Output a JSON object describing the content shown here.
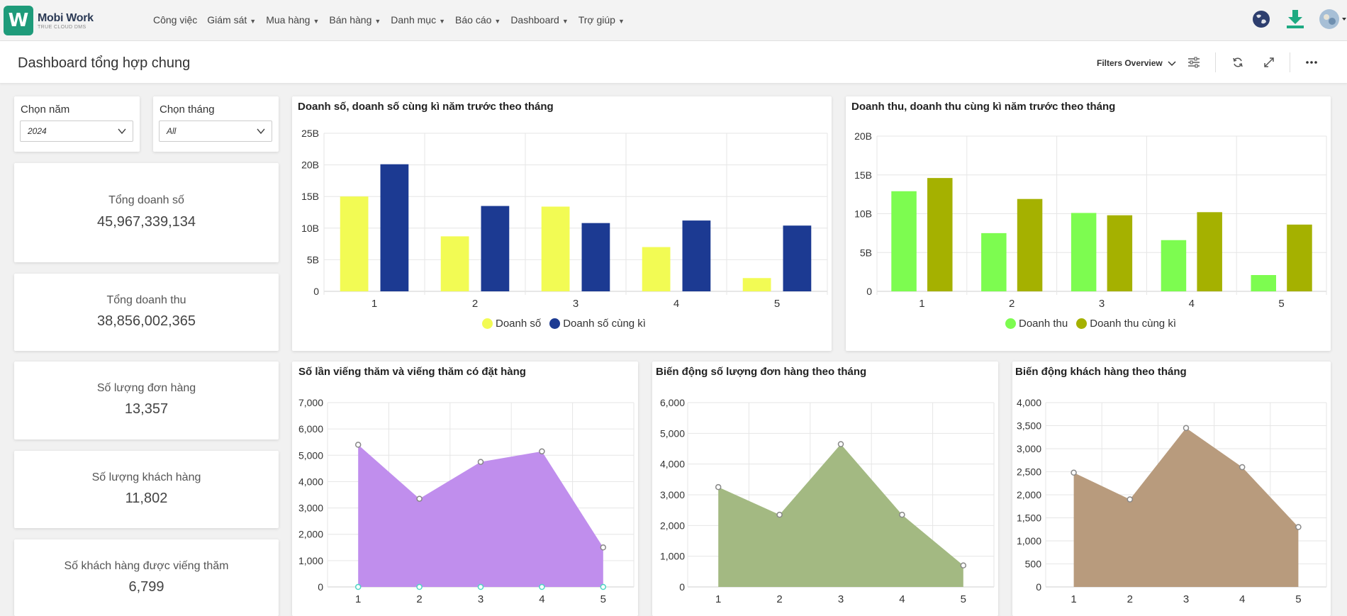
{
  "logo": {
    "name": "Mobi Work",
    "tagline": "TRUE CLOUD DMS"
  },
  "menu": [
    "Công việc",
    "Giám sát",
    "Mua hàng",
    "Bán hàng",
    "Danh mục",
    "Báo cáo",
    "Dashboard",
    "Trợ giúp"
  ],
  "menu_has_caret": [
    false,
    true,
    true,
    true,
    true,
    true,
    true,
    true
  ],
  "header": {
    "title": "Dashboard tổng hợp chung",
    "filters_label": "Filters Overview"
  },
  "filters": {
    "year": {
      "label": "Chọn năm",
      "value": "2024"
    },
    "month": {
      "label": "Chọn tháng",
      "value": "All"
    }
  },
  "kpis": [
    {
      "label": "Tổng doanh số",
      "value": "45,967,339,134"
    },
    {
      "label": "Tổng doanh thu",
      "value": "38,856,002,365"
    },
    {
      "label": "Số lượng đơn hàng",
      "value": "13,357"
    },
    {
      "label": "Số lượng khách hàng",
      "value": "11,802"
    },
    {
      "label": "Số khách hàng được viếng thăm",
      "value": "6,799"
    }
  ],
  "chart_data": [
    {
      "type": "bar",
      "title": "Doanh số, doanh số cùng kì năm trước theo tháng",
      "categories": [
        "1",
        "2",
        "3",
        "4",
        "5"
      ],
      "series": [
        {
          "name": "Doanh số",
          "color": "#f2fb54",
          "values": [
            15,
            8.7,
            13.4,
            7,
            2.1
          ]
        },
        {
          "name": "Doanh số cùng kì",
          "color": "#1c3a92",
          "values": [
            20.1,
            13.5,
            10.8,
            11.2,
            10.4
          ]
        }
      ],
      "ylim": [
        0,
        25
      ],
      "yticks": [
        "0",
        "5B",
        "10B",
        "15B",
        "20B",
        "25B"
      ],
      "ytick_values": [
        0,
        5,
        10,
        15,
        20,
        25
      ],
      "units": "B"
    },
    {
      "type": "bar",
      "title": "Doanh thu, doanh thu cùng kì năm trước theo tháng",
      "categories": [
        "1",
        "2",
        "3",
        "4",
        "5"
      ],
      "series": [
        {
          "name": "Doanh thu",
          "color": "#7dfc50",
          "values": [
            12.9,
            7.5,
            10.1,
            6.6,
            2.1
          ]
        },
        {
          "name": "Doanh thu cùng kì",
          "color": "#a5b100",
          "values": [
            14.6,
            11.9,
            9.8,
            10.2,
            8.6
          ]
        }
      ],
      "ylim": [
        0,
        20
      ],
      "yticks": [
        "0",
        "5B",
        "10B",
        "15B",
        "20B"
      ],
      "ytick_values": [
        0,
        5,
        10,
        15,
        20
      ],
      "units": "B"
    },
    {
      "type": "area",
      "title": "Số lần viếng thăm và viếng thăm có đặt hàng",
      "categories": [
        "1",
        "2",
        "3",
        "4",
        "5"
      ],
      "series": [
        {
          "color": "#c08eed",
          "values": [
            5400,
            3350,
            4750,
            5150,
            1500
          ]
        },
        {
          "color": "#4fd3c4",
          "values": [
            0,
            0,
            0,
            0,
            0
          ]
        }
      ],
      "ylim": [
        0,
        7000
      ],
      "yticks": [
        "0",
        "1,000",
        "2,000",
        "3,000",
        "4,000",
        "5,000",
        "6,000",
        "7,000"
      ],
      "ytick_values": [
        0,
        1000,
        2000,
        3000,
        4000,
        5000,
        6000,
        7000
      ]
    },
    {
      "type": "area",
      "title": "Biến động số lượng đơn hàng theo tháng",
      "categories": [
        "1",
        "2",
        "3",
        "4",
        "5"
      ],
      "series": [
        {
          "color": "#a3b982",
          "values": [
            3250,
            2350,
            4650,
            2350,
            700
          ]
        }
      ],
      "ylim": [
        0,
        6000
      ],
      "yticks": [
        "0",
        "1,000",
        "2,000",
        "3,000",
        "4,000",
        "5,000",
        "6,000"
      ],
      "ytick_values": [
        0,
        1000,
        2000,
        3000,
        4000,
        5000,
        6000
      ]
    },
    {
      "type": "area",
      "title": "Biến động khách hàng theo tháng",
      "categories": [
        "1",
        "2",
        "3",
        "4",
        "5"
      ],
      "series": [
        {
          "color": "#b89b7d",
          "values": [
            2480,
            1900,
            3450,
            2600,
            1300
          ]
        }
      ],
      "ylim": [
        0,
        4000
      ],
      "yticks": [
        "0",
        "500",
        "1,000",
        "1,500",
        "2,000",
        "2,500",
        "3,000",
        "3,500",
        "4,000"
      ],
      "ytick_values": [
        0,
        500,
        1000,
        1500,
        2000,
        2500,
        3000,
        3500,
        4000
      ]
    }
  ]
}
